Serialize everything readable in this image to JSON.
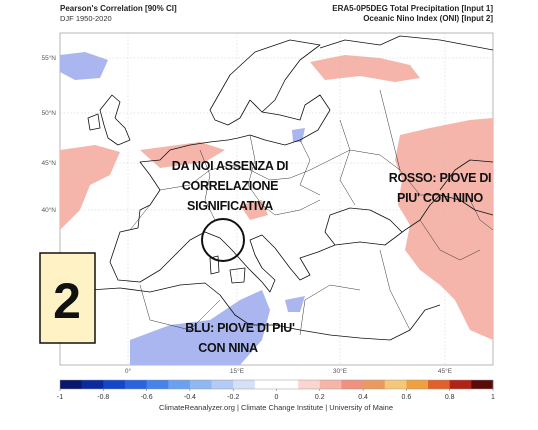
{
  "header": {
    "left_title": "Pearson's Correlation [90% CI]",
    "left_subtitle": "DJF 1950-2020",
    "right_title": "ERA5-0P5DEG Total Precipitation [Input 1]",
    "right_subtitle": "Oceanic Nino Index (ONI) [Input 2]"
  },
  "map": {
    "lat_labels": [
      "55°N",
      "50°N",
      "45°N",
      "40°N"
    ],
    "lon_labels": [
      "0°",
      "15°E",
      "30°E",
      "45°E"
    ]
  },
  "annotations": {
    "center": [
      "DA NOI ASSENZA DI",
      "CORRELAZIONE",
      "SIGNIFICATIVA"
    ],
    "red": [
      "ROSSO: PIOVE DI",
      "PIU' CON NINO"
    ],
    "blue": [
      "BLU: PIOVE DI PIU'",
      "CON NINA"
    ],
    "badge": "2"
  },
  "colorbar": {
    "ticks": [
      -1,
      -0.8,
      -0.6,
      -0.4,
      -0.2,
      0,
      0.2,
      0.4,
      0.6,
      0.8,
      1
    ],
    "colors": [
      "#08166b",
      "#0b2a9c",
      "#1446c8",
      "#2a63e0",
      "#4682ea",
      "#6aa0f0",
      "#8fb7f2",
      "#b3cbf5",
      "#d6e0f8",
      "#ffffff",
      "#ffffff",
      "#fbd6d0",
      "#f7b5aa",
      "#f1907f",
      "#ea9a60",
      "#f5c77a",
      "#f0a040",
      "#e0602a",
      "#b02418",
      "#5a0a08"
    ]
  },
  "footer": "ClimateReanalyzer.org | Climate Change Institute | University of Maine"
}
